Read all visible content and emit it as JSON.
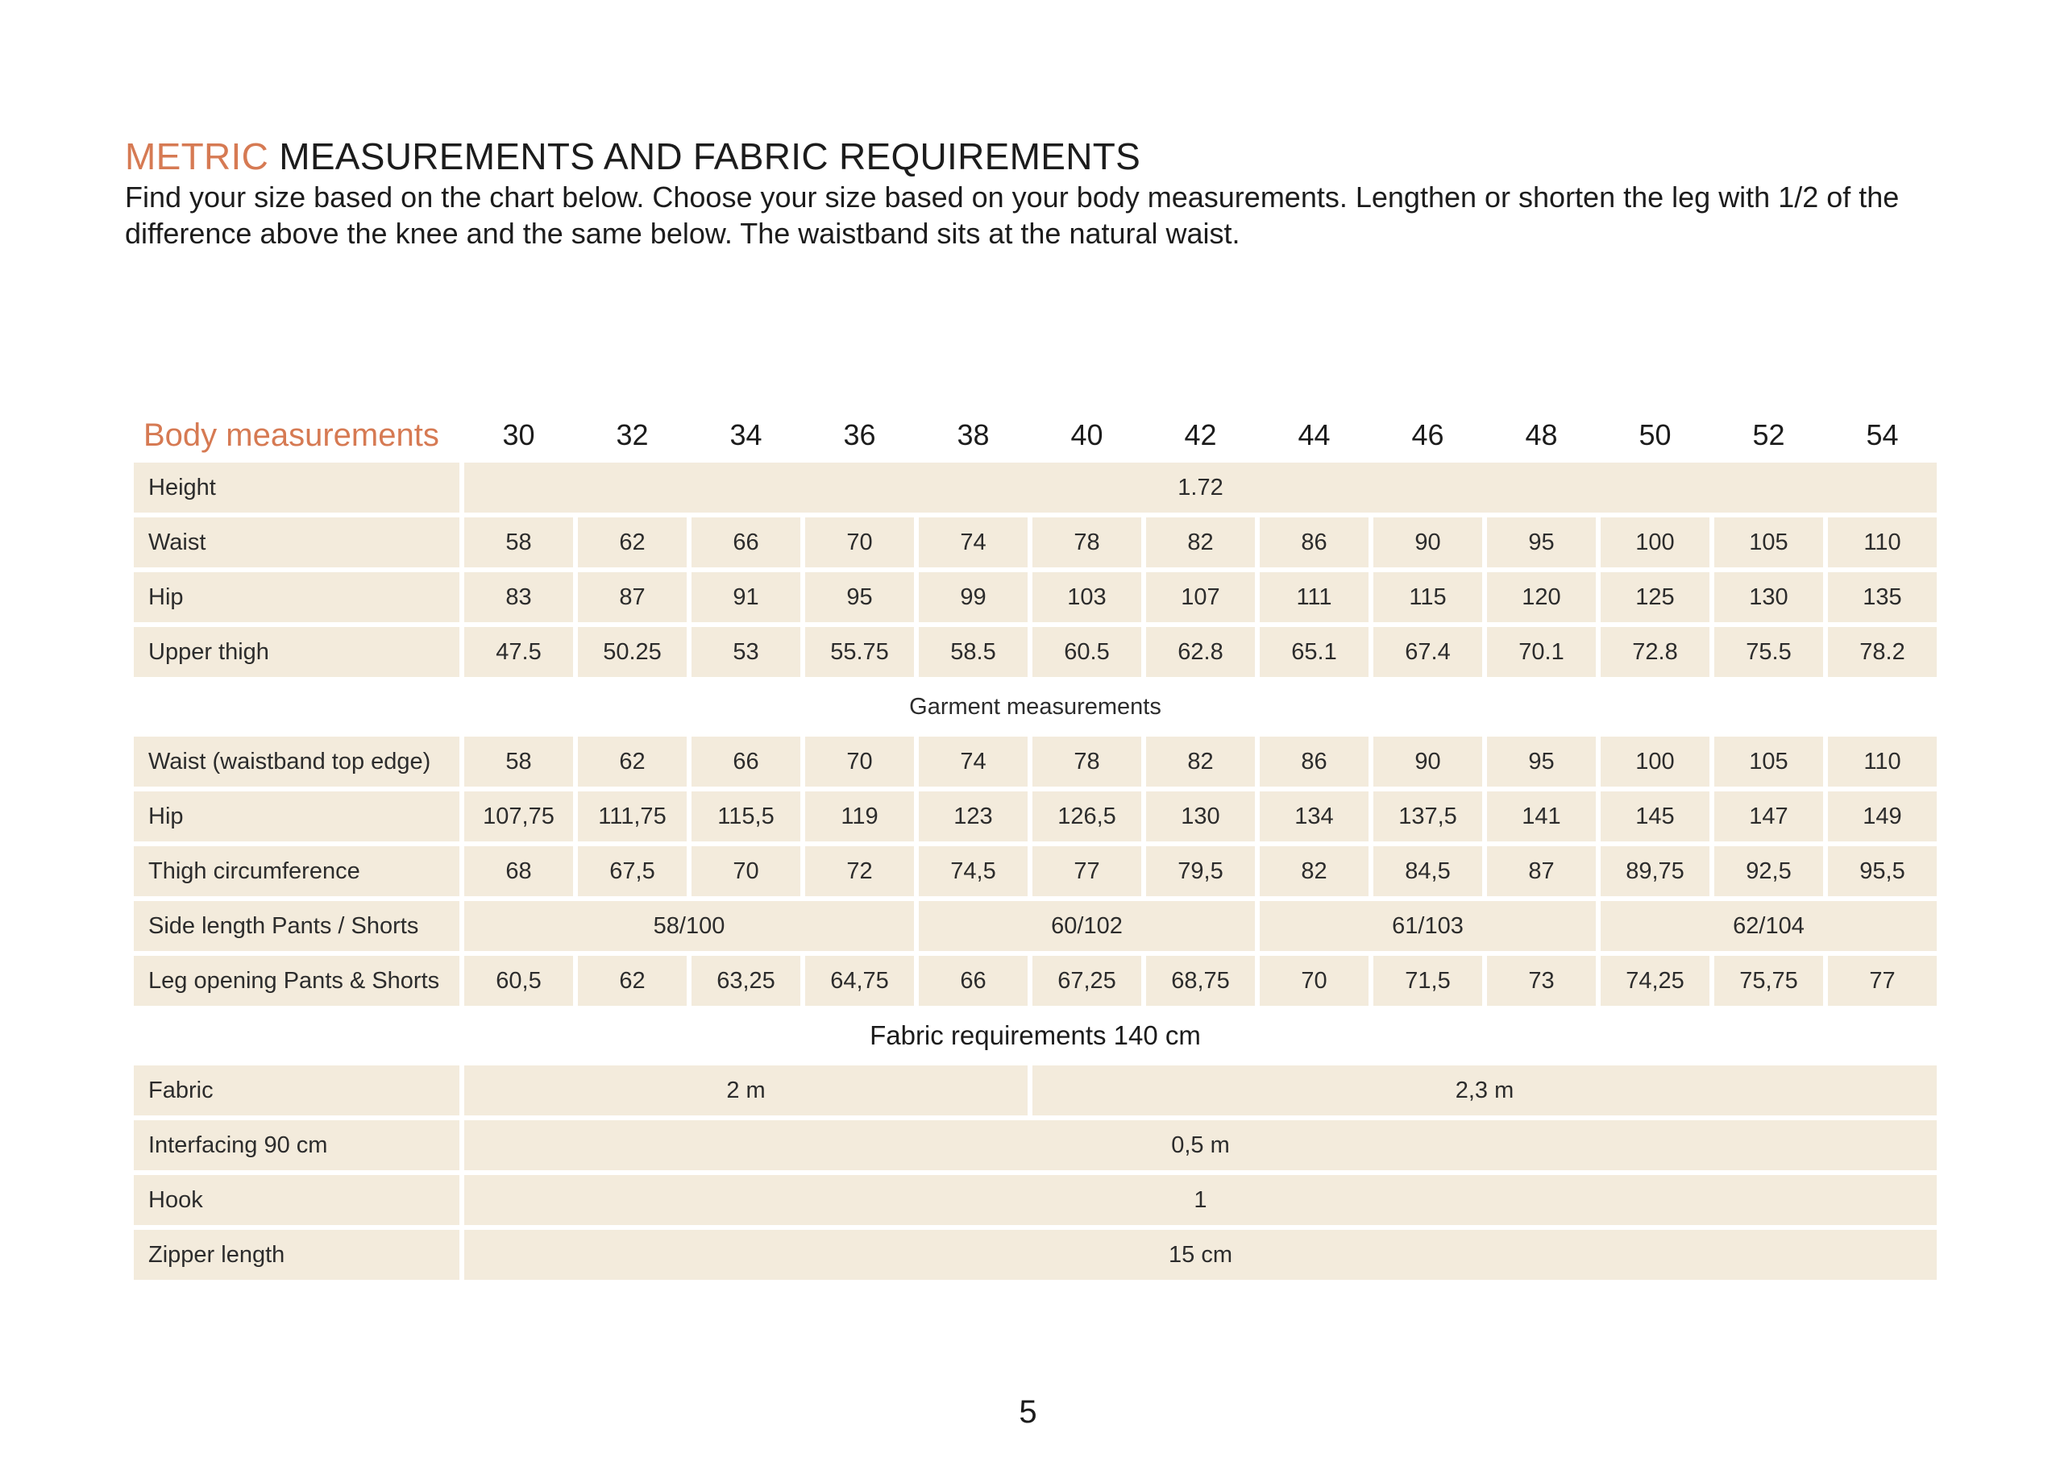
{
  "heading": {
    "accent": "METRIC",
    "rest": " MEASUREMENTS AND FABRIC REQUIREMENTS"
  },
  "intro_text": "Find your size based on the chart below. Choose your size based on your body measurements. Lengthen or shorten the leg with 1/2 of the difference above the knee and the same below. The waistband sits at the natural waist.",
  "table": {
    "body_title": "Body measurements",
    "sizes": [
      "30",
      "32",
      "34",
      "36",
      "38",
      "40",
      "42",
      "44",
      "46",
      "48",
      "50",
      "52",
      "54"
    ],
    "body_rows": {
      "height": {
        "label": "Height",
        "value": "1.72"
      },
      "waist": {
        "label": "Waist",
        "values": [
          "58",
          "62",
          "66",
          "70",
          "74",
          "78",
          "82",
          "86",
          "90",
          "95",
          "100",
          "105",
          "110"
        ]
      },
      "hip": {
        "label": "Hip",
        "values": [
          "83",
          "87",
          "91",
          "95",
          "99",
          "103",
          "107",
          "111",
          "115",
          "120",
          "125",
          "130",
          "135"
        ]
      },
      "upper_thigh": {
        "label": "Upper thigh",
        "values": [
          "47.5",
          "50.25",
          "53",
          "55.75",
          "58.5",
          "60.5",
          "62.8",
          "65.1",
          "67.4",
          "70.1",
          "72.8",
          "75.5",
          "78.2"
        ]
      }
    },
    "garment_title": "Garment measurements",
    "garment_rows": {
      "waist_band": {
        "label": "Waist (waistband top edge)",
        "values": [
          "58",
          "62",
          "66",
          "70",
          "74",
          "78",
          "82",
          "86",
          "90",
          "95",
          "100",
          "105",
          "110"
        ]
      },
      "hip": {
        "label": "Hip",
        "values": [
          "107,75",
          "111,75",
          "115,5",
          "119",
          "123",
          "126,5",
          "130",
          "134",
          "137,5",
          "141",
          "145",
          "147",
          "149"
        ]
      },
      "thigh": {
        "label": "Thigh circumference",
        "values": [
          "68",
          "67,5",
          "70",
          "72",
          "74,5",
          "77",
          "79,5",
          "82",
          "84,5",
          "87",
          "89,75",
          "92,5",
          "95,5"
        ]
      },
      "side_length": {
        "label": "Side length Pants / Shorts",
        "groups": [
          "58/100",
          "60/102",
          "61/103",
          "62/104"
        ]
      },
      "leg_opening": {
        "label": "Leg opening Pants & Shorts",
        "values": [
          "60,5",
          "62",
          "63,25",
          "64,75",
          "66",
          "67,25",
          "68,75",
          "70",
          "71,5",
          "73",
          "74,25",
          "75,75",
          "77"
        ]
      }
    },
    "fabric_title": "Fabric requirements 140 cm",
    "fabric_rows": {
      "fabric": {
        "label": "Fabric",
        "values": [
          "2 m",
          "2,3 m"
        ]
      },
      "interfacing": {
        "label": "Interfacing 90 cm",
        "value": "0,5 m"
      },
      "hook": {
        "label": "Hook",
        "value": "1"
      },
      "zipper": {
        "label": "Zipper length",
        "value": "15 cm"
      }
    }
  },
  "page_number": "5"
}
